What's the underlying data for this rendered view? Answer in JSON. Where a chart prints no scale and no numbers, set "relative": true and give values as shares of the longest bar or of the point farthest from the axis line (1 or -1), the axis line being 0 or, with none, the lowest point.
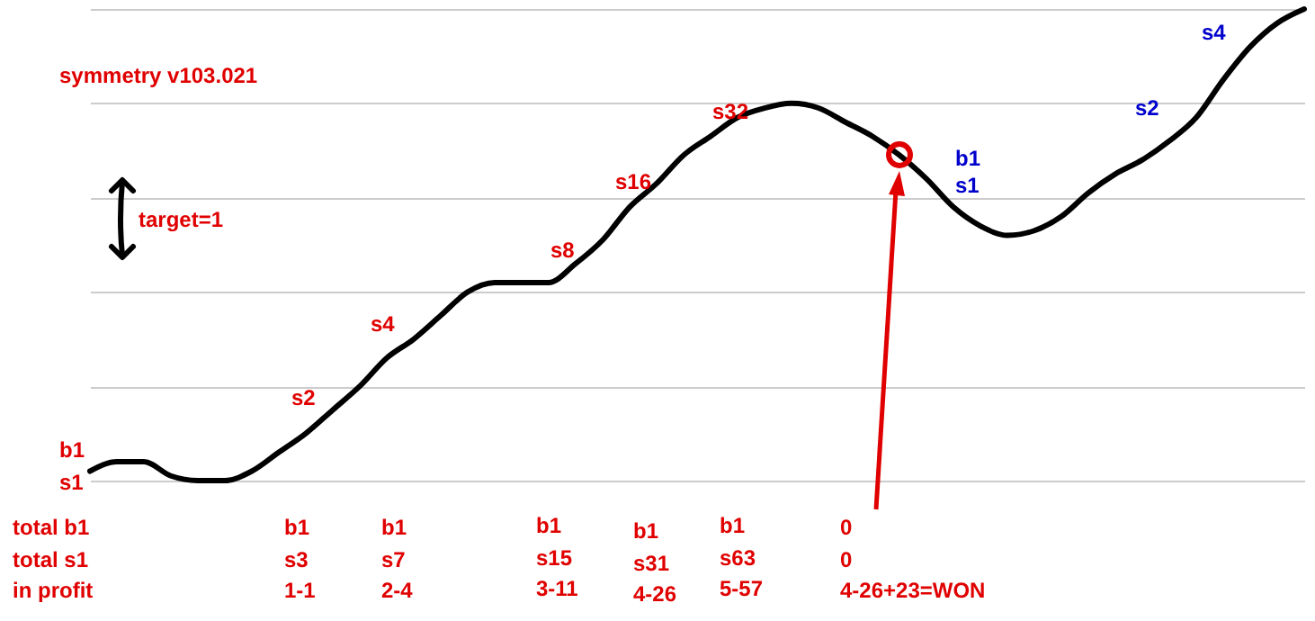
{
  "chart_data": {
    "type": "line",
    "relative": true,
    "grid": "y",
    "categories": [
      null,
      null,
      null,
      null,
      null,
      null,
      null,
      null,
      null,
      null,
      null,
      null,
      null,
      null,
      null,
      null,
      null,
      null,
      null,
      null,
      null,
      null,
      null,
      null,
      null,
      null,
      null,
      null,
      null,
      null,
      null,
      null,
      null,
      null,
      null,
      null,
      null,
      null,
      null,
      null,
      null,
      null,
      null,
      null,
      null,
      null
    ],
    "series": [
      {
        "color": "#000000",
        "values": [
          0.02,
          0.04,
          0.04,
          0.01,
          0,
          0,
          0.02,
          0.06,
          0.1,
          0.15,
          0.2,
          0.26,
          0.3,
          0.35,
          0.4,
          0.42,
          0.42,
          0.42,
          0.46,
          0.51,
          0.58,
          0.63,
          0.69,
          0.73,
          0.77,
          0.79,
          0.8,
          0.79,
          0.76,
          0.73,
          0.69,
          0.64,
          0.58,
          0.54,
          0.52,
          0.53,
          0.56,
          0.61,
          0.65,
          0.68,
          0.72,
          0.77,
          0.85,
          0.92,
          0.97,
          1
        ]
      }
    ],
    "annotations": [
      "symmetry v103.021",
      "target=1",
      "b1",
      "s1",
      "s2",
      "s4",
      "s8",
      "s16",
      "s32",
      "b1",
      "s1",
      "s2",
      "s4",
      "total b1",
      "total s1",
      "in profit",
      "b1",
      "s3",
      "1-1",
      "b1",
      "s7",
      "2-4",
      "b1",
      "s15",
      "3-11",
      "b1",
      "s31",
      "4-26",
      "b1",
      "s63",
      "5-57",
      "0",
      "0",
      "4-26+23=WON"
    ]
  }
}
